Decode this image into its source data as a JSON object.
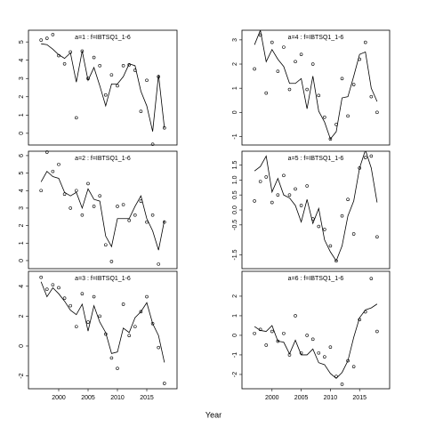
{
  "x_axis_label": "Year",
  "chart_data": [
    {
      "type": "line-scatter",
      "title": "a=1 : f=IBTSQ1_1-6",
      "x": [
        1997,
        1998,
        1999,
        2000,
        2001,
        2002,
        2003,
        2004,
        2005,
        2006,
        2007,
        2008,
        2009,
        2010,
        2011,
        2012,
        2013,
        2014,
        2015,
        2016,
        2017,
        2018
      ],
      "xlim": [
        1994.85,
        2020.15
      ],
      "ylim": [
        -0.64,
        5.64
      ],
      "yticks": [
        0,
        1,
        2,
        3,
        4,
        5
      ],
      "series": [
        {
          "style": "line",
          "color": "#000000",
          "values": [
            4.9,
            4.85,
            4.6,
            4.3,
            4.1,
            4.4,
            2.8,
            4.5,
            2.9,
            3.6,
            2.6,
            1.5,
            2.7,
            2.7,
            3.1,
            3.8,
            3.7,
            2.3,
            1.5,
            0.1,
            3.2,
            0.3
          ]
        },
        {
          "style": "points",
          "color": "#000000",
          "values": [
            5.1,
            5.2,
            5.4,
            4.25,
            3.8,
            4.45,
            0.85,
            4.5,
            3.0,
            4.15,
            3.7,
            2.1,
            3.2,
            2.6,
            3.7,
            3.75,
            3.45,
            1.2,
            2.9,
            -0.6,
            3.1,
            0.3
          ]
        }
      ]
    },
    {
      "type": "line-scatter",
      "title": "a=2 : f=IBTSQ1_1-6",
      "x": [
        1997,
        1998,
        1999,
        2000,
        2001,
        2002,
        2003,
        2004,
        2005,
        2006,
        2007,
        2008,
        2009,
        2010,
        2011,
        2012,
        2013,
        2014,
        2015,
        2016,
        2017,
        2018
      ],
      "xlim": [
        1994.85,
        2020.15
      ],
      "ylim": [
        -0.46,
        6.25
      ],
      "yticks": [
        0,
        1,
        2,
        3,
        4,
        5,
        6
      ],
      "series": [
        {
          "style": "line",
          "color": "#000000",
          "values": [
            4.5,
            5.1,
            4.8,
            4.7,
            3.9,
            3.7,
            3.9,
            3.0,
            4.1,
            3.5,
            3.4,
            1.4,
            0.8,
            2.4,
            2.4,
            2.4,
            3.1,
            3.7,
            2.4,
            1.7,
            0.6,
            2.3
          ]
        },
        {
          "style": "points",
          "color": "#000000",
          "values": [
            4.0,
            6.2,
            5.1,
            5.5,
            3.8,
            3.0,
            4.0,
            2.6,
            4.4,
            3.1,
            3.7,
            0.9,
            -0.05,
            3.1,
            3.2,
            2.3,
            2.6,
            3.4,
            2.2,
            2.6,
            -0.2,
            2.2
          ]
        }
      ]
    },
    {
      "type": "line-scatter",
      "title": "a=3 : f=IBTSQ1_1-6",
      "x": [
        1997,
        1998,
        1999,
        2000,
        2001,
        2002,
        2003,
        2004,
        2005,
        2006,
        2007,
        2008,
        2009,
        2010,
        2011,
        2012,
        2013,
        2014,
        2015,
        2016,
        2017,
        2018
      ],
      "xlim": [
        1994.85,
        2020.15
      ],
      "xticks": [
        2000,
        2005,
        2010,
        2015
      ],
      "ylim": [
        -2.86,
        5.0
      ],
      "yticks": [
        -2,
        0,
        2,
        4
      ],
      "series": [
        {
          "style": "line",
          "color": "#000000",
          "values": [
            4.3,
            3.3,
            3.9,
            3.5,
            3.0,
            2.4,
            2.1,
            2.8,
            1.0,
            2.7,
            1.6,
            0.9,
            -0.5,
            -0.4,
            1.2,
            0.9,
            1.9,
            2.3,
            2.9,
            1.5,
            0.7,
            -1.1
          ]
        },
        {
          "style": "points",
          "color": "#000000",
          "values": [
            4.6,
            3.8,
            4.1,
            3.9,
            3.2,
            2.7,
            1.3,
            3.5,
            1.6,
            3.3,
            2.0,
            0.8,
            -0.8,
            -1.5,
            2.8,
            0.7,
            1.3,
            2.3,
            3.3,
            1.5,
            -0.1,
            -2.5
          ]
        }
      ]
    },
    {
      "type": "line-scatter",
      "title": "a=4 : f=IBTSQ1_1-6",
      "x": [
        1997,
        1998,
        1999,
        2000,
        2001,
        2002,
        2003,
        2004,
        2005,
        2006,
        2007,
        2008,
        2009,
        2010,
        2011,
        2012,
        2013,
        2014,
        2015,
        2016,
        2017,
        2018
      ],
      "xlim": [
        1994.85,
        2020.15
      ],
      "ylim": [
        -1.35,
        3.4
      ],
      "yticks": [
        -1,
        0,
        1,
        2,
        3
      ],
      "series": [
        {
          "style": "line",
          "color": "#000000",
          "values": [
            2.8,
            3.4,
            2.1,
            2.6,
            2.2,
            1.9,
            1.2,
            1.2,
            1.4,
            0.15,
            1.5,
            0.05,
            -0.4,
            -1.1,
            -0.8,
            0.6,
            0.65,
            1.5,
            2.4,
            2.5,
            1.0,
            0.45
          ]
        },
        {
          "style": "points",
          "color": "#000000",
          "values": [
            1.8,
            3.2,
            0.8,
            2.9,
            1.7,
            2.7,
            0.95,
            2.1,
            2.4,
            0.95,
            2.0,
            0.7,
            -0.2,
            -1.1,
            -0.5,
            1.4,
            -0.15,
            1.15,
            2.2,
            2.9,
            0.65,
            0.0
          ]
        }
      ]
    },
    {
      "type": "line-scatter",
      "title": "a=5 : f=IBTSQ1_1-6",
      "x": [
        1997,
        1998,
        1999,
        2000,
        2001,
        2002,
        2003,
        2004,
        2005,
        2006,
        2007,
        2008,
        2009,
        2010,
        2011,
        2012,
        2013,
        2014,
        2015,
        2016,
        2017,
        2018
      ],
      "xlim": [
        1994.85,
        2020.15
      ],
      "ylim": [
        -1.96,
        1.96
      ],
      "yticks": [
        -1.5,
        -0.5,
        {
          "value": 0,
          "label": "0.0"
        },
        0.5,
        {
          "value": 1,
          "label": "1.0"
        },
        1.5
      ],
      "series": [
        {
          "style": "line",
          "color": "#000000",
          "values": [
            1.3,
            1.45,
            1.8,
            0.6,
            1.05,
            0.5,
            0.4,
            0.15,
            -0.4,
            0.35,
            -0.45,
            0.05,
            -1.0,
            -1.4,
            -1.7,
            -1.2,
            -0.2,
            0.3,
            1.4,
            2.0,
            1.4,
            0.25
          ]
        },
        {
          "style": "points",
          "color": "#000000",
          "values": [
            0.3,
            0.95,
            1.1,
            0.25,
            0.5,
            1.15,
            0.5,
            0.7,
            0.15,
            0.8,
            -0.3,
            -0.55,
            -0.65,
            -1.2,
            -1.7,
            -0.2,
            0.35,
            -0.8,
            1.4,
            1.75,
            1.8,
            -0.9
          ]
        }
      ]
    },
    {
      "type": "line-scatter",
      "title": "a=6 : f=IBTSQ1_1-6",
      "x": [
        1997,
        1998,
        1999,
        2000,
        2001,
        2002,
        2003,
        2004,
        2005,
        2006,
        2007,
        2008,
        2009,
        2010,
        2011,
        2012,
        2013,
        2014,
        2015,
        2016,
        2017,
        2018
      ],
      "xlim": [
        1994.85,
        2020.15
      ],
      "xticks": [
        2000,
        2005,
        2010,
        2015
      ],
      "ylim": [
        -2.73,
        3.27
      ],
      "yticks": [
        -2,
        -1,
        0,
        1,
        2
      ],
      "series": [
        {
          "style": "line",
          "color": "#000000",
          "values": [
            0.45,
            0.25,
            0.2,
            0.5,
            -0.3,
            -0.35,
            -0.95,
            -0.25,
            -1.0,
            -1.0,
            -0.7,
            -1.4,
            -1.5,
            -1.95,
            -2.2,
            -1.9,
            -1.3,
            -0.1,
            0.9,
            1.3,
            1.4,
            1.6
          ]
        },
        {
          "style": "points",
          "color": "#000000",
          "values": [
            0.1,
            0.3,
            -0.5,
            0.2,
            -0.3,
            0.1,
            -1.0,
            1.0,
            -0.9,
            0.0,
            -0.2,
            -0.9,
            -1.1,
            -0.6,
            -2.1,
            -2.5,
            -1.3,
            -1.6,
            0.8,
            1.2,
            2.9,
            0.2
          ]
        }
      ]
    }
  ]
}
